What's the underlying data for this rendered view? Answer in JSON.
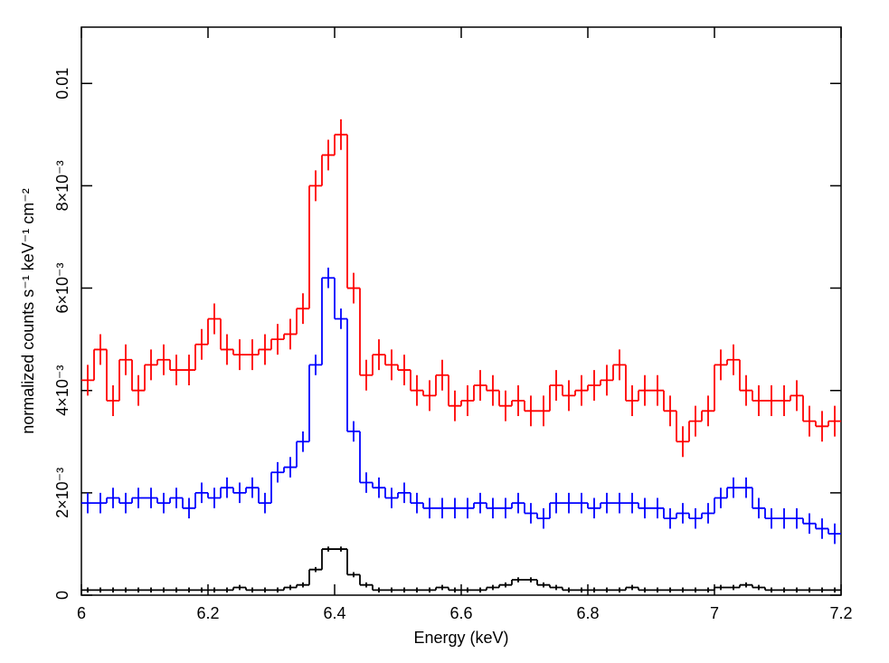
{
  "chart_data": {
    "type": "step",
    "xlabel": "Energy (keV)",
    "ylabel": "normalized counts s⁻¹ keV⁻¹ cm⁻²",
    "x": [
      6.01,
      6.03,
      6.05,
      6.07,
      6.09,
      6.11,
      6.13,
      6.15,
      6.17,
      6.19,
      6.21,
      6.23,
      6.25,
      6.27,
      6.29,
      6.31,
      6.33,
      6.35,
      6.37,
      6.39,
      6.41,
      6.43,
      6.45,
      6.47,
      6.49,
      6.51,
      6.53,
      6.55,
      6.57,
      6.59,
      6.61,
      6.63,
      6.65,
      6.67,
      6.69,
      6.71,
      6.73,
      6.75,
      6.77,
      6.79,
      6.81,
      6.83,
      6.85,
      6.87,
      6.89,
      6.91,
      6.93,
      6.95,
      6.97,
      6.99,
      7.01,
      7.03,
      7.05,
      7.07,
      7.09,
      7.11,
      7.13,
      7.15,
      7.17,
      7.19
    ],
    "series": [
      {
        "color": "#ff0000",
        "error": 0.0003,
        "values": [
          0.0042,
          0.0048,
          0.0038,
          0.0046,
          0.004,
          0.0045,
          0.0046,
          0.0044,
          0.0044,
          0.0049,
          0.0054,
          0.0048,
          0.0047,
          0.0047,
          0.0048,
          0.005,
          0.0051,
          0.0056,
          0.008,
          0.0086,
          0.009,
          0.006,
          0.0043,
          0.0047,
          0.0045,
          0.0044,
          0.004,
          0.0039,
          0.0043,
          0.0037,
          0.0038,
          0.0041,
          0.004,
          0.0037,
          0.0038,
          0.0036,
          0.0036,
          0.0041,
          0.0039,
          0.004,
          0.0041,
          0.0042,
          0.0045,
          0.0038,
          0.004,
          0.004,
          0.0036,
          0.003,
          0.0034,
          0.0036,
          0.0045,
          0.0046,
          0.004,
          0.0038,
          0.0038,
          0.0038,
          0.0039,
          0.0034,
          0.0033,
          0.0034
        ]
      },
      {
        "color": "#0000ff",
        "error": 0.0002,
        "values": [
          0.0018,
          0.0018,
          0.0019,
          0.0018,
          0.0019,
          0.0019,
          0.0018,
          0.0019,
          0.0017,
          0.002,
          0.0019,
          0.0021,
          0.002,
          0.0021,
          0.0018,
          0.0024,
          0.0025,
          0.003,
          0.0045,
          0.0062,
          0.0054,
          0.0032,
          0.0022,
          0.0021,
          0.0019,
          0.002,
          0.0018,
          0.0017,
          0.0017,
          0.0017,
          0.0017,
          0.0018,
          0.0017,
          0.0017,
          0.0018,
          0.0016,
          0.0015,
          0.0018,
          0.0018,
          0.0018,
          0.0017,
          0.0018,
          0.0018,
          0.0018,
          0.0017,
          0.0017,
          0.0015,
          0.0016,
          0.0015,
          0.0016,
          0.0019,
          0.0021,
          0.0021,
          0.0017,
          0.0015,
          0.0015,
          0.0015,
          0.0014,
          0.0013,
          0.0012
        ]
      },
      {
        "color": "#000000",
        "error": 5e-05,
        "values": [
          0.0001,
          0.0001,
          0.0001,
          0.0001,
          0.0001,
          0.0001,
          0.0001,
          0.0001,
          0.0001,
          0.0001,
          0.0001,
          0.0001,
          0.00015,
          0.0001,
          0.0001,
          0.0001,
          0.00015,
          0.0002,
          0.0005,
          0.0009,
          0.0009,
          0.0004,
          0.0002,
          0.0001,
          0.0001,
          0.0001,
          0.0001,
          0.0001,
          0.00015,
          0.0001,
          0.0001,
          0.0001,
          0.00015,
          0.0002,
          0.0003,
          0.0003,
          0.0002,
          0.00015,
          0.0001,
          0.0001,
          0.0001,
          0.0001,
          0.0001,
          0.00015,
          0.0001,
          0.0001,
          0.0001,
          0.0001,
          0.0001,
          0.0001,
          0.00015,
          0.00015,
          0.0002,
          0.00015,
          0.0001,
          0.0001,
          0.0001,
          0.0001,
          0.0001,
          0.0001
        ]
      }
    ],
    "xlim": [
      6,
      7.2
    ],
    "xticks": [
      6,
      6.2,
      6.4,
      6.6,
      6.8,
      7,
      7.2
    ],
    "ylim": [
      0,
      0.0111
    ],
    "yticks": [
      0,
      {
        "value": 0.002,
        "label": "2×10⁻³"
      },
      {
        "value": 0.004,
        "label": "4×10⁻³"
      },
      {
        "value": 0.006,
        "label": "6×10⁻³"
      },
      {
        "value": 0.008,
        "label": "8×10⁻³"
      },
      0.01
    ]
  }
}
